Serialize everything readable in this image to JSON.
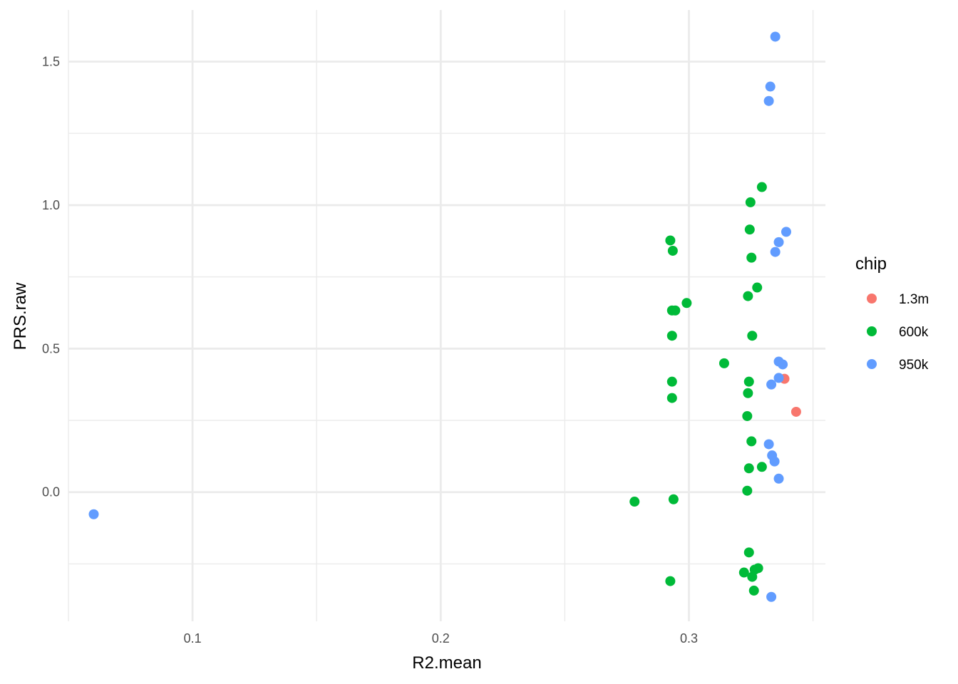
{
  "chart_data": {
    "type": "scatter",
    "xlabel": "R2.mean",
    "ylabel": "PRS.raw",
    "xlim": [
      0.05,
      0.355
    ],
    "ylim": [
      -0.45,
      1.68
    ],
    "x_ticks": [
      0.1,
      0.2,
      0.3
    ],
    "x_tick_labels": [
      "0.1",
      "0.2",
      "0.3"
    ],
    "x_minor_ticks": [
      0.05,
      0.15,
      0.25,
      0.35
    ],
    "y_ticks": [
      0.0,
      0.5,
      1.0,
      1.5
    ],
    "y_tick_labels": [
      "0.0",
      "0.5",
      "1.0",
      "1.5"
    ],
    "y_minor_ticks": [
      -0.25,
      0.25,
      0.75,
      1.25
    ],
    "grid": true,
    "legend": {
      "title": "chip",
      "position": "right"
    },
    "series": [
      {
        "name": "1.3m",
        "color": "#F8766D",
        "points": [
          [
            0.3385,
            0.395
          ],
          [
            0.3432,
            0.28
          ]
        ]
      },
      {
        "name": "600k",
        "color": "#00BA38",
        "points": [
          [
            0.2781,
            -0.033
          ],
          [
            0.2925,
            0.877
          ],
          [
            0.2935,
            0.841
          ],
          [
            0.2932,
            0.633
          ],
          [
            0.2945,
            0.633
          ],
          [
            0.2932,
            0.545
          ],
          [
            0.2932,
            0.385
          ],
          [
            0.2932,
            0.328
          ],
          [
            0.2938,
            -0.025
          ],
          [
            0.2925,
            -0.31
          ],
          [
            0.2991,
            0.659
          ],
          [
            0.3142,
            0.449
          ],
          [
            0.3248,
            1.01
          ],
          [
            0.3245,
            0.915
          ],
          [
            0.3252,
            0.817
          ],
          [
            0.3238,
            0.683
          ],
          [
            0.3255,
            0.545
          ],
          [
            0.3275,
            0.713
          ],
          [
            0.3294,
            1.063
          ],
          [
            0.3242,
            0.385
          ],
          [
            0.3238,
            0.345
          ],
          [
            0.3235,
            0.265
          ],
          [
            0.3252,
            0.177
          ],
          [
            0.3242,
            0.083
          ],
          [
            0.3294,
            0.088
          ],
          [
            0.3235,
            0.005
          ],
          [
            0.3242,
            -0.21
          ],
          [
            0.3222,
            -0.28
          ],
          [
            0.3255,
            -0.295
          ],
          [
            0.3265,
            -0.27
          ],
          [
            0.3279,
            -0.265
          ],
          [
            0.3262,
            -0.343
          ]
        ]
      },
      {
        "name": "950k",
        "color": "#619CFF",
        "points": [
          [
            0.0602,
            -0.077
          ],
          [
            0.3348,
            1.587
          ],
          [
            0.3328,
            1.413
          ],
          [
            0.3322,
            1.363
          ],
          [
            0.3392,
            0.907
          ],
          [
            0.3362,
            0.871
          ],
          [
            0.3348,
            0.837
          ],
          [
            0.3362,
            0.455
          ],
          [
            0.3378,
            0.445
          ],
          [
            0.3362,
            0.398
          ],
          [
            0.3332,
            0.375
          ],
          [
            0.3322,
            0.167
          ],
          [
            0.3335,
            0.128
          ],
          [
            0.3345,
            0.107
          ],
          [
            0.3362,
            0.047
          ],
          [
            0.3332,
            -0.365
          ]
        ]
      }
    ]
  }
}
